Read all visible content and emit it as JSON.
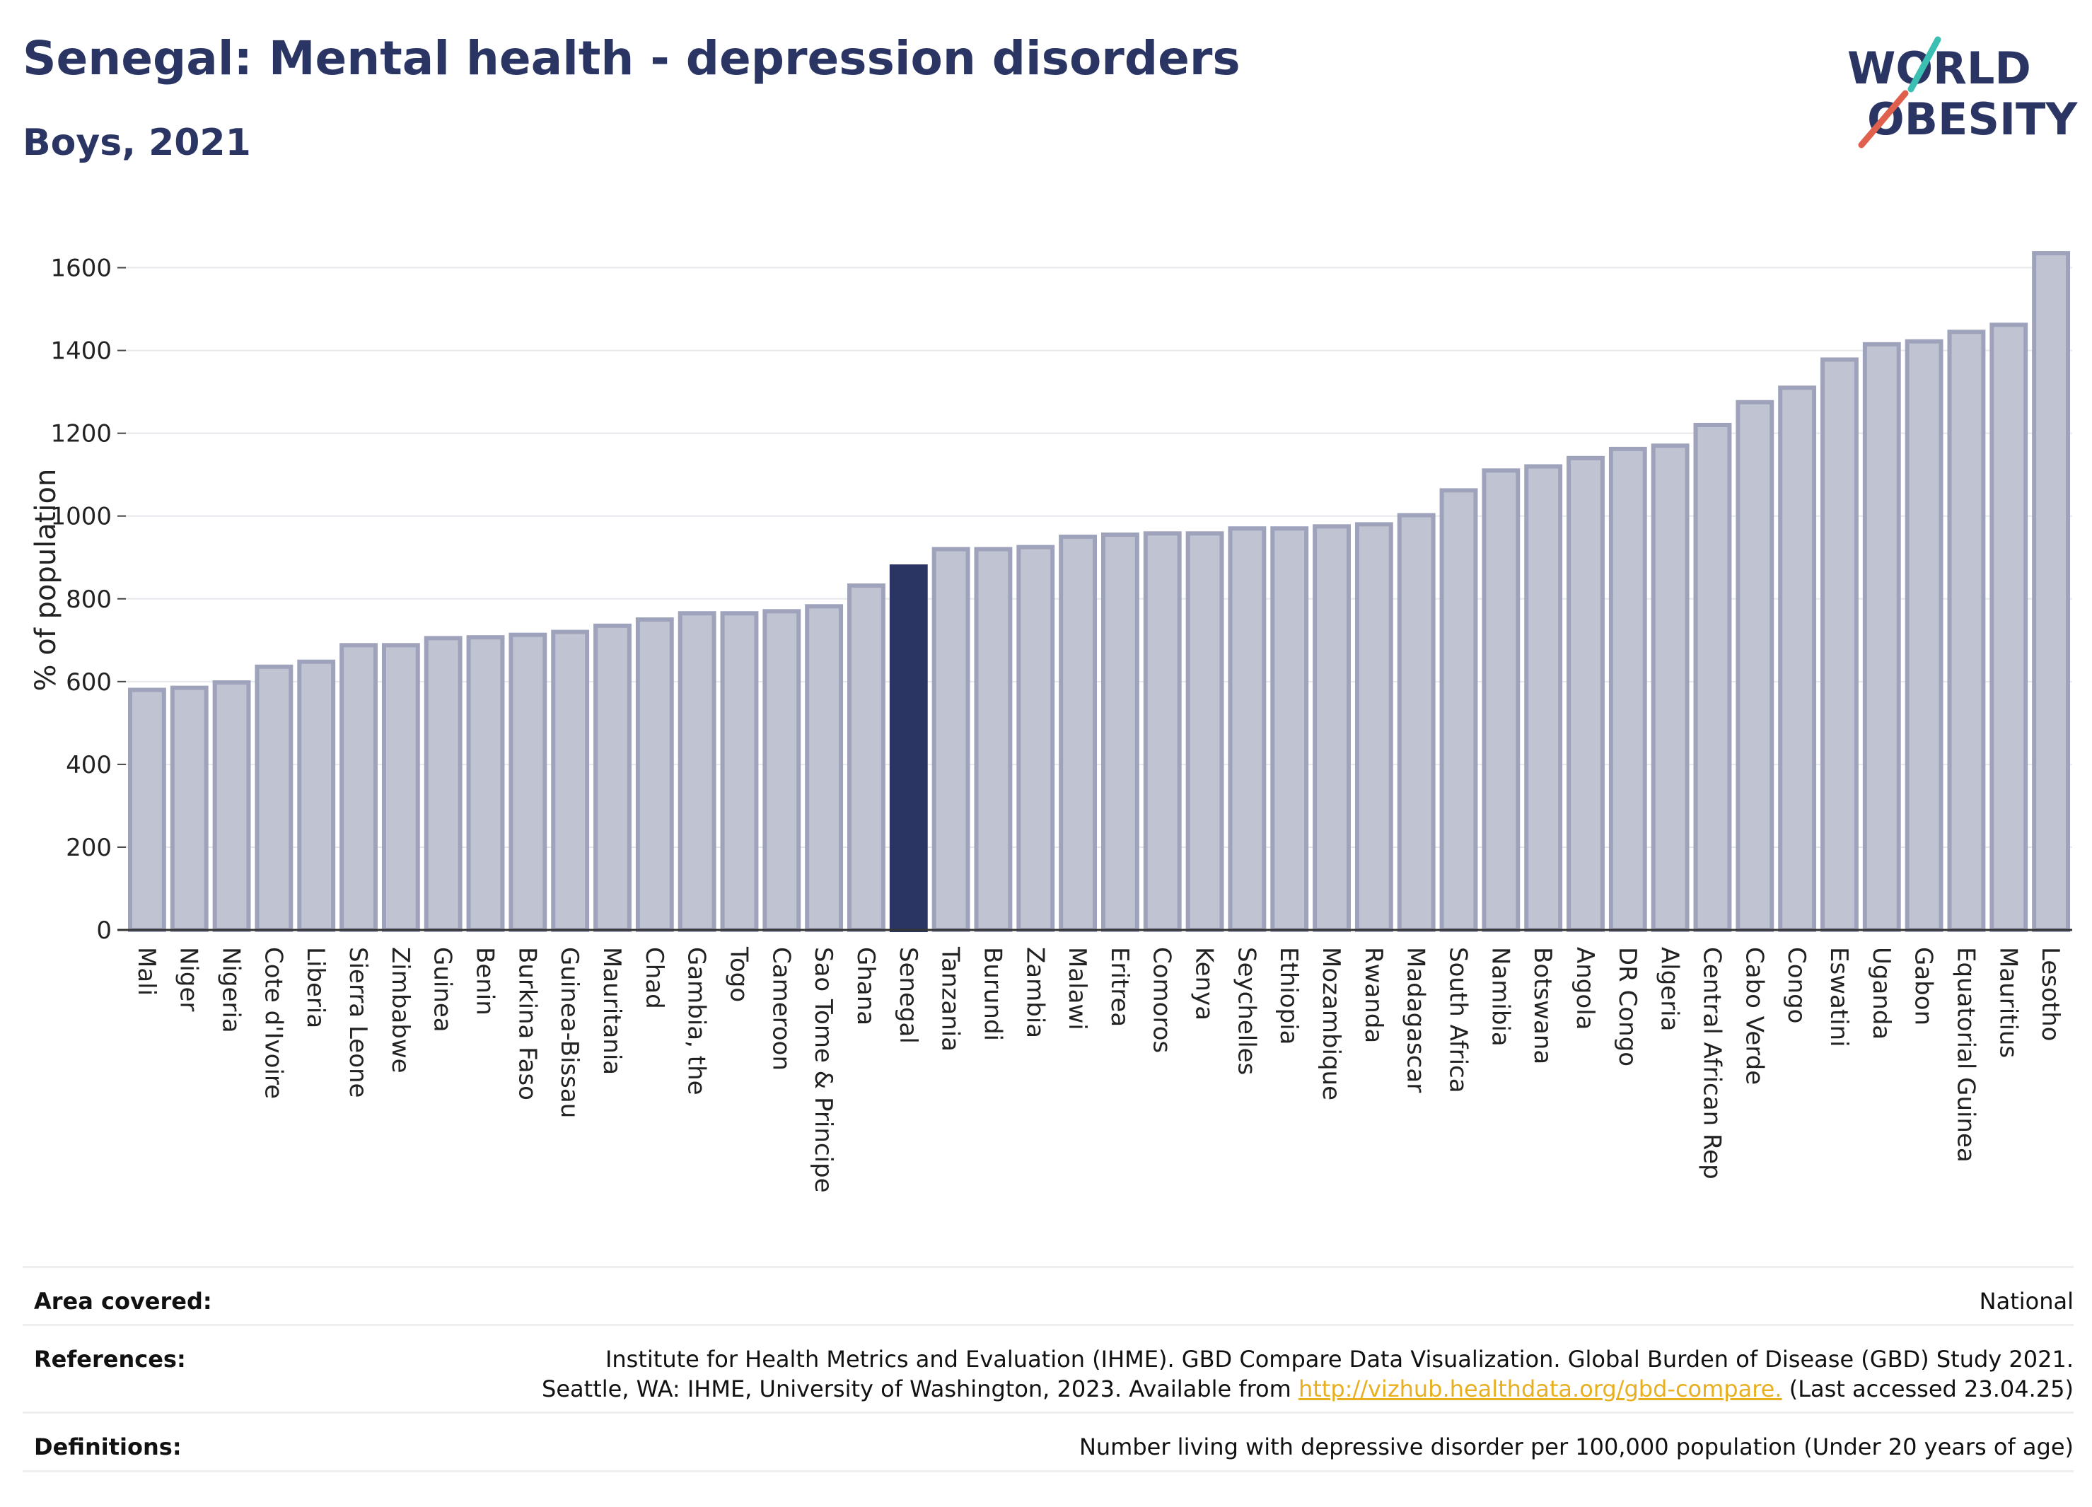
{
  "header": {
    "title": "Senegal: Mental health - depression disorders",
    "subtitle": "Boys, 2021"
  },
  "logo": {
    "line1": "WORLD",
    "line2": "OBESITY",
    "accent_teal": "#3bbfb2",
    "accent_red": "#e0604e"
  },
  "colors": {
    "bar": "#c0c3d1",
    "bar_border": "#9ea3bb",
    "highlight": "#2a3563"
  },
  "chart_data": {
    "type": "bar",
    "title": "Senegal: Mental health - depression disorders",
    "subtitle": "Boys, 2021",
    "ylabel": "% of population",
    "xlabel": "",
    "ylim": [
      0,
      1700
    ],
    "yticks": [
      0,
      200,
      400,
      600,
      800,
      1000,
      1200,
      1400,
      1600
    ],
    "grid": true,
    "highlight": "Senegal",
    "categories": [
      "Mali",
      "Niger",
      "Nigeria",
      "Cote d'Ivoire",
      "Liberia",
      "Sierra Leone",
      "Zimbabwe",
      "Guinea",
      "Benin",
      "Burkina Faso",
      "Guinea-Bissau",
      "Mauritania",
      "Chad",
      "Gambia, the",
      "Togo",
      "Cameroon",
      "Sao Tome & Principe",
      "Ghana",
      "Senegal",
      "Tanzania",
      "Burundi",
      "Zambia",
      "Malawi",
      "Eritrea",
      "Comoros",
      "Kenya",
      "Seychelles",
      "Ethiopia",
      "Mozambique",
      "Rwanda",
      "Madagascar",
      "South Africa",
      "Namibia",
      "Botswana",
      "Angola",
      "DR Congo",
      "Algeria",
      "Central African Rep",
      "Cabo Verde",
      "Congo",
      "Eswatini",
      "Uganda",
      "Gabon",
      "Equatorial Guinea",
      "Mauritius",
      "Lesotho"
    ],
    "values": [
      580,
      585,
      598,
      636,
      648,
      688,
      688,
      705,
      707,
      713,
      720,
      735,
      750,
      765,
      765,
      770,
      782,
      832,
      878,
      920,
      920,
      925,
      950,
      955,
      958,
      958,
      970,
      970,
      975,
      980,
      1002,
      1062,
      1110,
      1120,
      1140,
      1162,
      1170,
      1220,
      1275,
      1310,
      1378,
      1415,
      1422,
      1445,
      1462,
      1635
    ]
  },
  "info_table": {
    "area_label": "Area covered:",
    "area_value": "National",
    "references_label": "References:",
    "references_line1": "Institute for Health Metrics and Evaluation (IHME). GBD Compare Data Visualization. Global Burden of Disease (GBD) Study 2021.",
    "references_line2_pre": "Seattle, WA: IHME, University of Washington, 2023. Available from ",
    "references_link": "http://vizhub.healthdata.org/gbd-compare.",
    "references_line2_post": " (Last accessed 23.04.25)",
    "definitions_label": "Definitions:",
    "definitions_value": "Number living with depressive disorder per 100,000 population (Under 20 years of age)"
  }
}
